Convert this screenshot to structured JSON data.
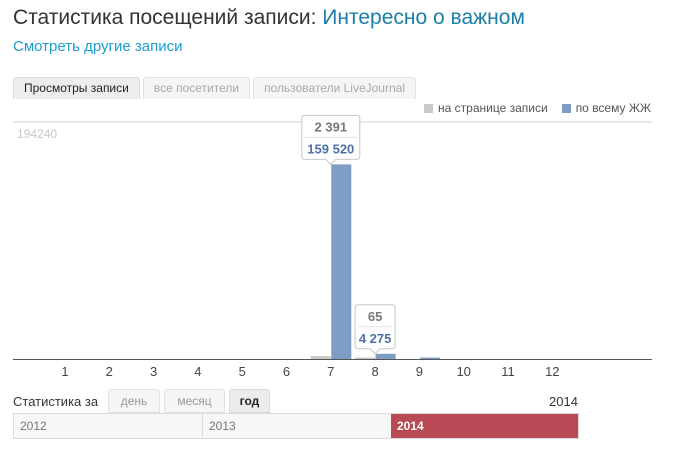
{
  "header": {
    "title_prefix": "Статистика посещений записи:",
    "title_post": "Интересно о важном",
    "other_link": "Смотреть другие записи"
  },
  "tabs": [
    {
      "label": "Просмотры записи",
      "active": true
    },
    {
      "label": "все посетители",
      "active": false
    },
    {
      "label": "пользователи LiveJournal",
      "active": false
    }
  ],
  "legend": {
    "page_label": "на странице записи",
    "page_color": "#c9c9c9",
    "all_label": "по всему ЖЖ",
    "all_color": "#7f9dc4"
  },
  "chart_data": {
    "type": "bar",
    "categories": [
      "1",
      "2",
      "3",
      "4",
      "5",
      "6",
      "7",
      "8",
      "9",
      "10",
      "11",
      "12"
    ],
    "series": [
      {
        "name": "на странице записи",
        "values": [
          0,
          0,
          0,
          0,
          0,
          0,
          2391,
          65,
          0,
          0,
          0,
          0
        ]
      },
      {
        "name": "по всему ЖЖ",
        "values": [
          0,
          0,
          0,
          0,
          0,
          0,
          159520,
          4275,
          1100,
          0,
          0,
          0
        ]
      }
    ],
    "ymax_label": "194240",
    "ylim": [
      0,
      194240
    ],
    "tooltips": [
      {
        "category": "7",
        "page": "2 391",
        "all": "159 520"
      },
      {
        "category": "8",
        "page": "65",
        "all": "4 275"
      }
    ],
    "grid": false
  },
  "range": {
    "label": "Статистика за",
    "day": "день",
    "month": "месяц",
    "year": "год",
    "current_year": "2014"
  },
  "timeline": [
    {
      "label": "2012",
      "active": false
    },
    {
      "label": "2013",
      "active": false
    },
    {
      "label": "2014",
      "active": true
    }
  ]
}
